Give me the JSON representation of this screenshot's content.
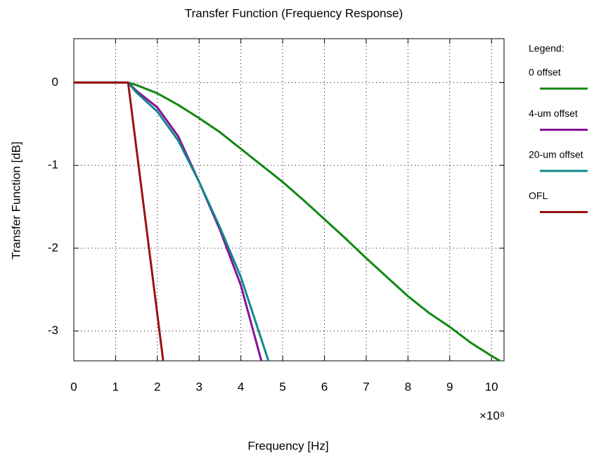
{
  "chart_data": {
    "type": "line",
    "title": "Transfer Function (Frequency Response)",
    "x_label": "Frequency [Hz]",
    "y_label": "Transfer Function [dB]",
    "x_scale_label": "×10⁸",
    "legend_title": "Legend:",
    "legend_position": "right",
    "grid": true,
    "xlim": [
      0,
      10.3
    ],
    "ylim": [
      -3.36,
      0.53
    ],
    "xticks": [
      0,
      1,
      2,
      3,
      4,
      5,
      6,
      7,
      8,
      9,
      10
    ],
    "yticks": [
      0,
      -1,
      -2,
      -3
    ],
    "series": [
      {
        "name": "0 offset",
        "color": "#118811",
        "x": [
          0,
          1.3,
          1.5,
          2,
          2.5,
          3,
          3.5,
          4,
          4.5,
          5,
          5.5,
          6,
          6.5,
          7,
          7.5,
          8,
          8.5,
          9,
          9.5,
          10,
          10.2
        ],
        "values": [
          0,
          0,
          -0.03,
          -0.13,
          -0.27,
          -0.43,
          -0.6,
          -0.8,
          -1.0,
          -1.2,
          -1.42,
          -1.65,
          -1.88,
          -2.12,
          -2.35,
          -2.58,
          -2.78,
          -2.95,
          -3.14,
          -3.3,
          -3.36
        ]
      },
      {
        "name": "4-um offset",
        "color": "#881199",
        "x": [
          0,
          1.3,
          1.5,
          2,
          2.5,
          3,
          3.5,
          4,
          4.49
        ],
        "values": [
          0,
          0,
          -0.1,
          -0.3,
          -0.65,
          -1.2,
          -1.78,
          -2.45,
          -3.36
        ]
      },
      {
        "name": "20-um offset",
        "color": "#118888",
        "x": [
          0,
          1.3,
          1.5,
          2,
          2.5,
          3,
          3.5,
          4,
          4.66
        ],
        "values": [
          0,
          0,
          -0.12,
          -0.35,
          -0.7,
          -1.2,
          -1.75,
          -2.35,
          -3.36
        ]
      },
      {
        "name": "OFL",
        "color": "#991111",
        "x": [
          0,
          1.3,
          2.14
        ],
        "values": [
          0,
          0,
          -3.36
        ]
      }
    ]
  }
}
